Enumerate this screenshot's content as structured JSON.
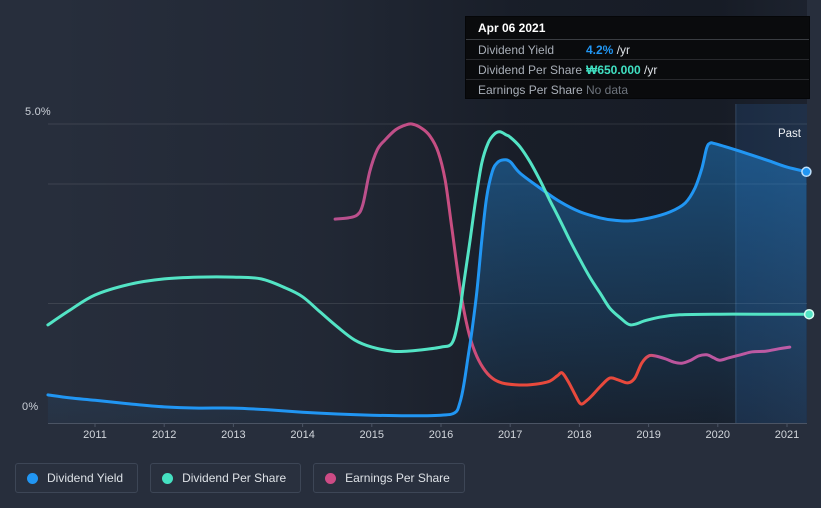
{
  "tooltip": {
    "date": "Apr 06 2021",
    "rows": [
      {
        "label": "Dividend Yield",
        "value": "4.2%",
        "suffix": " /yr"
      },
      {
        "label": "Dividend Per Share",
        "value": "₩650.000",
        "suffix": " /yr"
      },
      {
        "label": "Earnings Per Share",
        "value": "No data",
        "suffix": ""
      }
    ]
  },
  "axis": {
    "y_top_label": "5.0%",
    "y_bottom_label": "0%",
    "years": [
      2011,
      2012,
      2013,
      2014,
      2015,
      2016,
      2017,
      2018,
      2019,
      2020,
      2021
    ]
  },
  "past_label": "Past",
  "legend": [
    {
      "label": "Dividend Yield",
      "color": "#2196f3"
    },
    {
      "label": "Dividend Per Share",
      "color": "#45e1c2"
    },
    {
      "label": "Earnings Per Share",
      "color": "#cd4b85"
    }
  ],
  "colors": {
    "dividend_yield": "#2196f3",
    "dividend_per_share": "#53e4c5",
    "earnings_per_share": "#bd5296",
    "earnings_negative": "#e8493c",
    "grid": "rgba(255,255,255,0.10)",
    "axis_line": "#4b5464",
    "past_band": "rgba(45,120,200,0.17)",
    "tooltip_bg": "#0a0b0d"
  },
  "chart_data": {
    "type": "line",
    "title": "Dividend history (yield, dividend per share, earnings per share)",
    "x_axis": {
      "unit": "year",
      "range": [
        2010.32,
        2021.36
      ],
      "labels": [
        2011,
        2012,
        2013,
        2014,
        2015,
        2016,
        2017,
        2018,
        2019,
        2020,
        2021
      ]
    },
    "y_axis": {
      "unit": "percent",
      "range": [
        0,
        5
      ],
      "tick_labels": [
        "5.0%",
        "0%"
      ],
      "gridline_values": [
        5,
        4,
        2
      ]
    },
    "legend_position": "bottom-left",
    "past_region": {
      "start": 2020.26,
      "end": 2021.36,
      "label": "Past"
    },
    "current_values": {
      "date": "Apr 06 2021",
      "dividend_yield": "4.2% /yr",
      "dividend_per_share": "₩650.000 /yr",
      "earnings_per_share": "No data"
    },
    "series": [
      {
        "name": "Dividend Yield",
        "color": "#2196f3",
        "area_fill": true,
        "end_marker": true,
        "points": [
          [
            2010.32,
            0.47
          ],
          [
            2010.64,
            0.42
          ],
          [
            2011,
            0.38
          ],
          [
            2011.5,
            0.32
          ],
          [
            2012,
            0.27
          ],
          [
            2012.5,
            0.25
          ],
          [
            2013,
            0.25
          ],
          [
            2013.5,
            0.22
          ],
          [
            2014,
            0.18
          ],
          [
            2014.5,
            0.15
          ],
          [
            2015,
            0.13
          ],
          [
            2015.5,
            0.12
          ],
          [
            2016,
            0.13
          ],
          [
            2016.2,
            0.17
          ],
          [
            2016.27,
            0.33
          ],
          [
            2016.33,
            0.64
          ],
          [
            2016.39,
            1.1
          ],
          [
            2016.45,
            1.56
          ],
          [
            2016.52,
            2.22
          ],
          [
            2016.59,
            3.06
          ],
          [
            2016.66,
            3.78
          ],
          [
            2016.74,
            4.2
          ],
          [
            2016.81,
            4.35
          ],
          [
            2016.9,
            4.4
          ],
          [
            2017,
            4.37
          ],
          [
            2017.14,
            4.18
          ],
          [
            2017.43,
            3.93
          ],
          [
            2017.72,
            3.7
          ],
          [
            2018.01,
            3.53
          ],
          [
            2018.3,
            3.43
          ],
          [
            2018.51,
            3.39
          ],
          [
            2018.73,
            3.38
          ],
          [
            2019.02,
            3.43
          ],
          [
            2019.31,
            3.53
          ],
          [
            2019.53,
            3.68
          ],
          [
            2019.67,
            3.93
          ],
          [
            2019.77,
            4.26
          ],
          [
            2019.84,
            4.6
          ],
          [
            2019.89,
            4.68
          ],
          [
            2019.96,
            4.67
          ],
          [
            2020.25,
            4.57
          ],
          [
            2020.49,
            4.48
          ],
          [
            2020.75,
            4.38
          ],
          [
            2021,
            4.28
          ],
          [
            2021.28,
            4.2
          ]
        ]
      },
      {
        "name": "Dividend Per Share",
        "color": "#53e4c5",
        "area_fill": false,
        "end_marker": true,
        "scale_note": "plotted on hidden currency scale; latest value ₩650.000/yr",
        "points": [
          [
            2010.32,
            1.64
          ],
          [
            2010.64,
            1.89
          ],
          [
            2011,
            2.14
          ],
          [
            2011.5,
            2.32
          ],
          [
            2012,
            2.41
          ],
          [
            2012.5,
            2.44
          ],
          [
            2013,
            2.44
          ],
          [
            2013.4,
            2.41
          ],
          [
            2013.75,
            2.26
          ],
          [
            2014,
            2.11
          ],
          [
            2014.25,
            1.86
          ],
          [
            2014.5,
            1.61
          ],
          [
            2014.75,
            1.39
          ],
          [
            2015,
            1.27
          ],
          [
            2015.3,
            1.2
          ],
          [
            2015.5,
            1.2
          ],
          [
            2015.7,
            1.22
          ],
          [
            2016,
            1.27
          ],
          [
            2016.16,
            1.34
          ],
          [
            2016.25,
            1.72
          ],
          [
            2016.33,
            2.34
          ],
          [
            2016.42,
            3.06
          ],
          [
            2016.51,
            3.8
          ],
          [
            2016.59,
            4.35
          ],
          [
            2016.68,
            4.68
          ],
          [
            2016.77,
            4.83
          ],
          [
            2016.85,
            4.87
          ],
          [
            2016.94,
            4.82
          ],
          [
            2017,
            4.78
          ],
          [
            2017.14,
            4.62
          ],
          [
            2017.29,
            4.36
          ],
          [
            2017.43,
            4.06
          ],
          [
            2017.57,
            3.73
          ],
          [
            2017.72,
            3.39
          ],
          [
            2017.86,
            3.06
          ],
          [
            2018.01,
            2.73
          ],
          [
            2018.15,
            2.44
          ],
          [
            2018.3,
            2.17
          ],
          [
            2018.44,
            1.92
          ],
          [
            2018.59,
            1.76
          ],
          [
            2018.74,
            1.64
          ],
          [
            2018.95,
            1.71
          ],
          [
            2019.16,
            1.77
          ],
          [
            2019.45,
            1.81
          ],
          [
            2020.03,
            1.82
          ],
          [
            2020.6,
            1.82
          ],
          [
            2021.32,
            1.82
          ]
        ]
      },
      {
        "name": "Earnings Per Share",
        "color": "#bd5296",
        "area_fill": false,
        "end_marker": false,
        "scale_note": "plotted on hidden currency scale; red span indicates weak/negative earnings; no data after early 2021",
        "negative_span": [
          2016.8,
          2018.93
        ],
        "gradient_stops": [
          [
            0,
            "#b8508f"
          ],
          [
            0.31,
            "#cb4d7e"
          ],
          [
            0.36,
            "#e8493c"
          ],
          [
            0.675,
            "#e8493c"
          ],
          [
            0.71,
            "#bb549b"
          ],
          [
            1,
            "#bd5ca6"
          ]
        ],
        "points": [
          [
            2014.47,
            3.41
          ],
          [
            2014.66,
            3.43
          ],
          [
            2014.79,
            3.48
          ],
          [
            2014.87,
            3.65
          ],
          [
            2014.97,
            4.2
          ],
          [
            2015.08,
            4.57
          ],
          [
            2015.19,
            4.73
          ],
          [
            2015.34,
            4.9
          ],
          [
            2015.48,
            4.98
          ],
          [
            2015.58,
            5.0
          ],
          [
            2015.72,
            4.93
          ],
          [
            2015.84,
            4.8
          ],
          [
            2015.96,
            4.53
          ],
          [
            2016.06,
            4.06
          ],
          [
            2016.16,
            3.23
          ],
          [
            2016.28,
            2.22
          ],
          [
            2016.39,
            1.56
          ],
          [
            2016.49,
            1.19
          ],
          [
            2016.61,
            0.92
          ],
          [
            2016.74,
            0.75
          ],
          [
            2016.88,
            0.67
          ],
          [
            2017.07,
            0.64
          ],
          [
            2017.29,
            0.64
          ],
          [
            2017.55,
            0.69
          ],
          [
            2017.68,
            0.79
          ],
          [
            2017.75,
            0.84
          ],
          [
            2017.84,
            0.69
          ],
          [
            2017.94,
            0.47
          ],
          [
            2018.02,
            0.32
          ],
          [
            2018.11,
            0.38
          ],
          [
            2018.2,
            0.48
          ],
          [
            2018.31,
            0.62
          ],
          [
            2018.44,
            0.75
          ],
          [
            2018.56,
            0.72
          ],
          [
            2018.7,
            0.67
          ],
          [
            2018.8,
            0.75
          ],
          [
            2018.9,
            1.0
          ],
          [
            2019,
            1.12
          ],
          [
            2019.1,
            1.12
          ],
          [
            2019.25,
            1.07
          ],
          [
            2019.36,
            1.02
          ],
          [
            2019.48,
            1.0
          ],
          [
            2019.61,
            1.05
          ],
          [
            2019.72,
            1.12
          ],
          [
            2019.84,
            1.14
          ],
          [
            2019.94,
            1.09
          ],
          [
            2020.03,
            1.05
          ],
          [
            2020.16,
            1.09
          ],
          [
            2020.33,
            1.14
          ],
          [
            2020.5,
            1.19
          ],
          [
            2020.69,
            1.2
          ],
          [
            2020.88,
            1.24
          ],
          [
            2021.04,
            1.27
          ]
        ]
      }
    ]
  }
}
